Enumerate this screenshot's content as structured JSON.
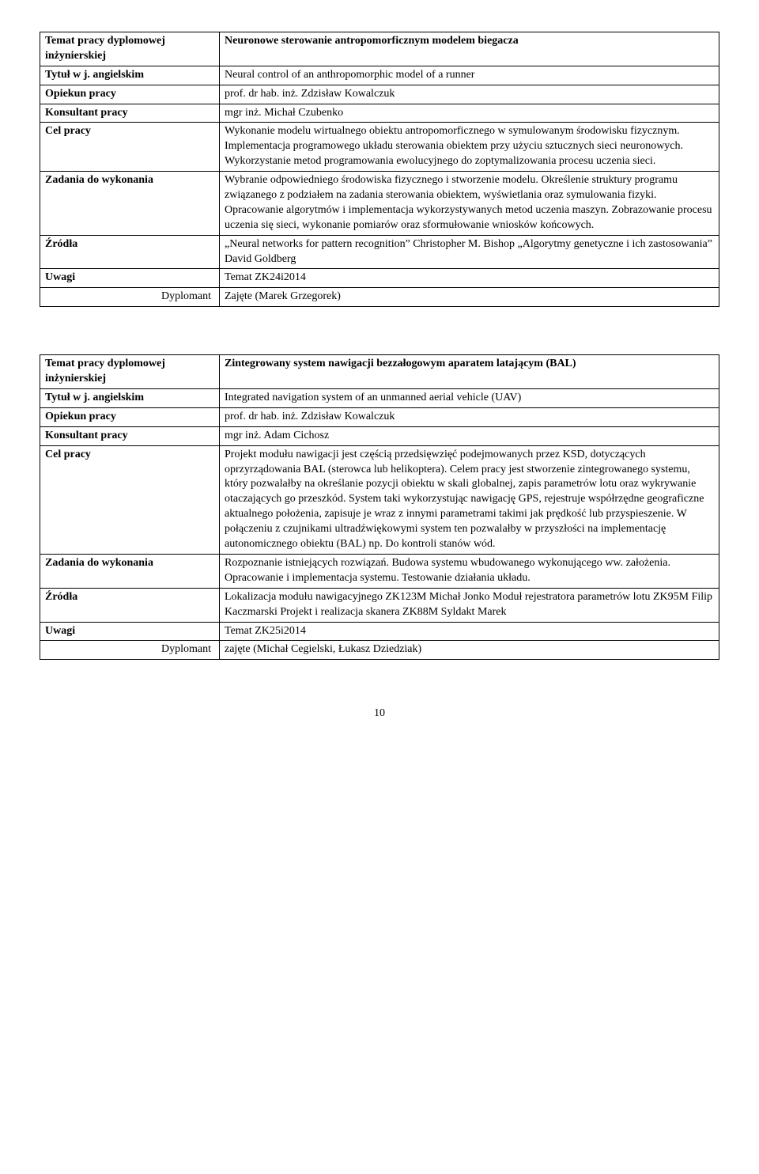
{
  "table1": {
    "rows": [
      {
        "label": "Temat pracy dyplomowej inżynierskiej",
        "value": "Neuronowe sterowanie antropomorficznym modelem  biegacza",
        "labelBold": true,
        "valueBold": true
      },
      {
        "label": "Tytuł w j. angielskim",
        "value": "Neural control of an anthropomorphic model of a runner",
        "labelBold": true,
        "valueBold": false
      },
      {
        "label": "Opiekun pracy",
        "value": "prof. dr hab. inż. Zdzisław Kowalczuk",
        "labelBold": true,
        "valueBold": false
      },
      {
        "label": "Konsultant pracy",
        "value": "mgr inż. Michał Czubenko",
        "labelBold": true,
        "valueBold": false
      },
      {
        "label": "Cel pracy",
        "value": "Wykonanie modelu wirtualnego obiektu antropomorficznego w symulowanym środowisku fizycznym. Implementacja programowego układu sterowania obiektem przy użyciu sztucznych sieci neuronowych. Wykorzystanie metod programowania ewolucyjnego do zoptymalizowania procesu uczenia sieci.",
        "labelBold": true,
        "valueBold": false
      },
      {
        "label": "Zadania do wykonania",
        "value": "Wybranie odpowiedniego środowiska fizycznego i stworzenie modelu. Określenie struktury programu związanego z podziałem na zadania sterowania obiektem, wyświetlania oraz symulowania fizyki. Opracowanie algorytmów i implementacja wykorzystywanych metod uczenia maszyn. Zobrazowanie procesu uczenia się sieci, wykonanie pomiarów oraz sformułowanie wniosków końcowych.",
        "labelBold": true,
        "valueBold": false
      },
      {
        "label": "Źródła",
        "value": "„Neural networks for pattern recognition” Christopher M. Bishop „Algorytmy genetyczne i ich zastosowania” David Goldberg",
        "labelBold": true,
        "valueBold": false
      },
      {
        "label": "Uwagi",
        "value": "Temat ZK24i2014",
        "labelBold": true,
        "valueBold": false
      },
      {
        "label": "Dyplomant",
        "value": "Zajęte  (Marek Grzegorek)",
        "labelBold": false,
        "valueBold": false,
        "indent": true
      }
    ]
  },
  "table2": {
    "rows": [
      {
        "label": "Temat pracy dyplomowej inżynierskiej",
        "value": "Zintegrowany system nawigacji bezzałogowym aparatem latającym (BAL)",
        "labelBold": true,
        "valueBold": true
      },
      {
        "label": "Tytuł w j. angielskim",
        "value": "Integrated navigation system of an unmanned aerial vehicle (UAV)",
        "labelBold": true,
        "valueBold": false
      },
      {
        "label": "Opiekun pracy",
        "value": "prof. dr hab. inż. Zdzisław Kowalczuk",
        "labelBold": true,
        "valueBold": false
      },
      {
        "label": "Konsultant pracy",
        "value": "mgr inż. Adam Cichosz",
        "labelBold": true,
        "valueBold": false
      },
      {
        "label": "Cel pracy",
        "value": "Projekt modułu nawigacji jest częścią przedsięwzięć podejmowanych przez KSD, dotyczących oprzyrządowania BAL (sterowca lub helikoptera). Celem pracy jest stworzenie zintegrowanego systemu, który pozwalałby na określanie pozycji obiektu w skali globalnej, zapis parametrów lotu oraz wykrywanie otaczających go przeszkód. System taki wykorzystując nawigację GPS, rejestruje współrzędne geograficzne aktualnego położenia, zapisuje je wraz z innymi parametrami takimi jak prędkość lub przyspieszenie. W połączeniu z czujnikami ultradźwiękowymi system ten pozwalałby w przyszłości na implementację autonomicznego obiektu (BAL) np. Do kontroli stanów wód.",
        "labelBold": true,
        "valueBold": false
      },
      {
        "label": "Zadania do wykonania",
        "value": "Rozpoznanie istniejących rozwiązań. Budowa systemu wbudowanego wykonującego ww. założenia. Opracowanie i implementacja systemu. Testowanie działania układu.",
        "labelBold": true,
        "valueBold": false
      },
      {
        "label": "Źródła",
        "value": "Lokalizacja modułu nawigacyjnego ZK123M Michał Jonko Moduł rejestratora parametrów lotu ZK95M Filip Kaczmarski Projekt i realizacja skanera ZK88M Syldakt Marek",
        "labelBold": true,
        "valueBold": false
      },
      {
        "label": "Uwagi",
        "value": "Temat ZK25i2014",
        "labelBold": true,
        "valueBold": false
      },
      {
        "label": "Dyplomant",
        "value": "zajęte (Michał Cegielski, Łukasz Dziedziak)",
        "labelBold": false,
        "valueBold": false,
        "indent": true
      }
    ]
  },
  "pageNumber": "10"
}
